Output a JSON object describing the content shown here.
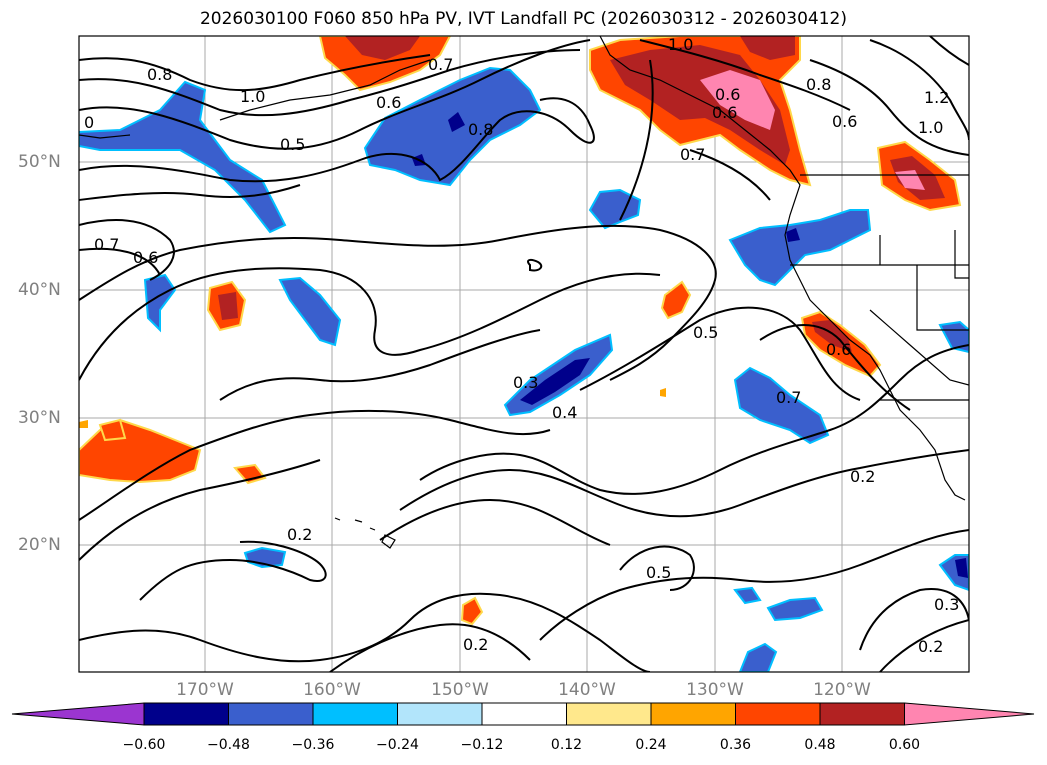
{
  "title": "2026030100 F060 850 hPa PV, IVT Landfall PC (2026030312 - 2026030412)",
  "lat_labels": [
    "50°N",
    "40°N",
    "30°N",
    "20°N"
  ],
  "lon_labels": [
    "170°W",
    "160°W",
    "150°W",
    "140°W",
    "130°W",
    "120°W"
  ],
  "colorbar": {
    "tick_labels": [
      "−0.60",
      "−0.48",
      "−0.36",
      "−0.24",
      "−0.12",
      "0.12",
      "0.24",
      "0.36",
      "0.48",
      "0.60"
    ],
    "colors": [
      "#9b35d0",
      "#00008b",
      "#3a5fcd",
      "#00bfff",
      "#b2e5fb",
      "#ffffff",
      "#ffe88c",
      "#ffa500",
      "#ff4500",
      "#b22222",
      "#ff85b0"
    ]
  },
  "contour_labels": [
    "0.8",
    "1.0",
    "0.5",
    "0.6",
    "0.7",
    "0.8",
    "1.0",
    "0.8",
    "0.6",
    "0.7",
    "1.2",
    "1.0",
    "0.6",
    "0.7",
    "0.6",
    "0.3",
    "0.4",
    "0.5",
    "0.6",
    "0.7",
    "0.2",
    "0.2",
    "0.5",
    "0.2",
    "0.3",
    "0.2",
    "0.6",
    "0"
  ]
}
